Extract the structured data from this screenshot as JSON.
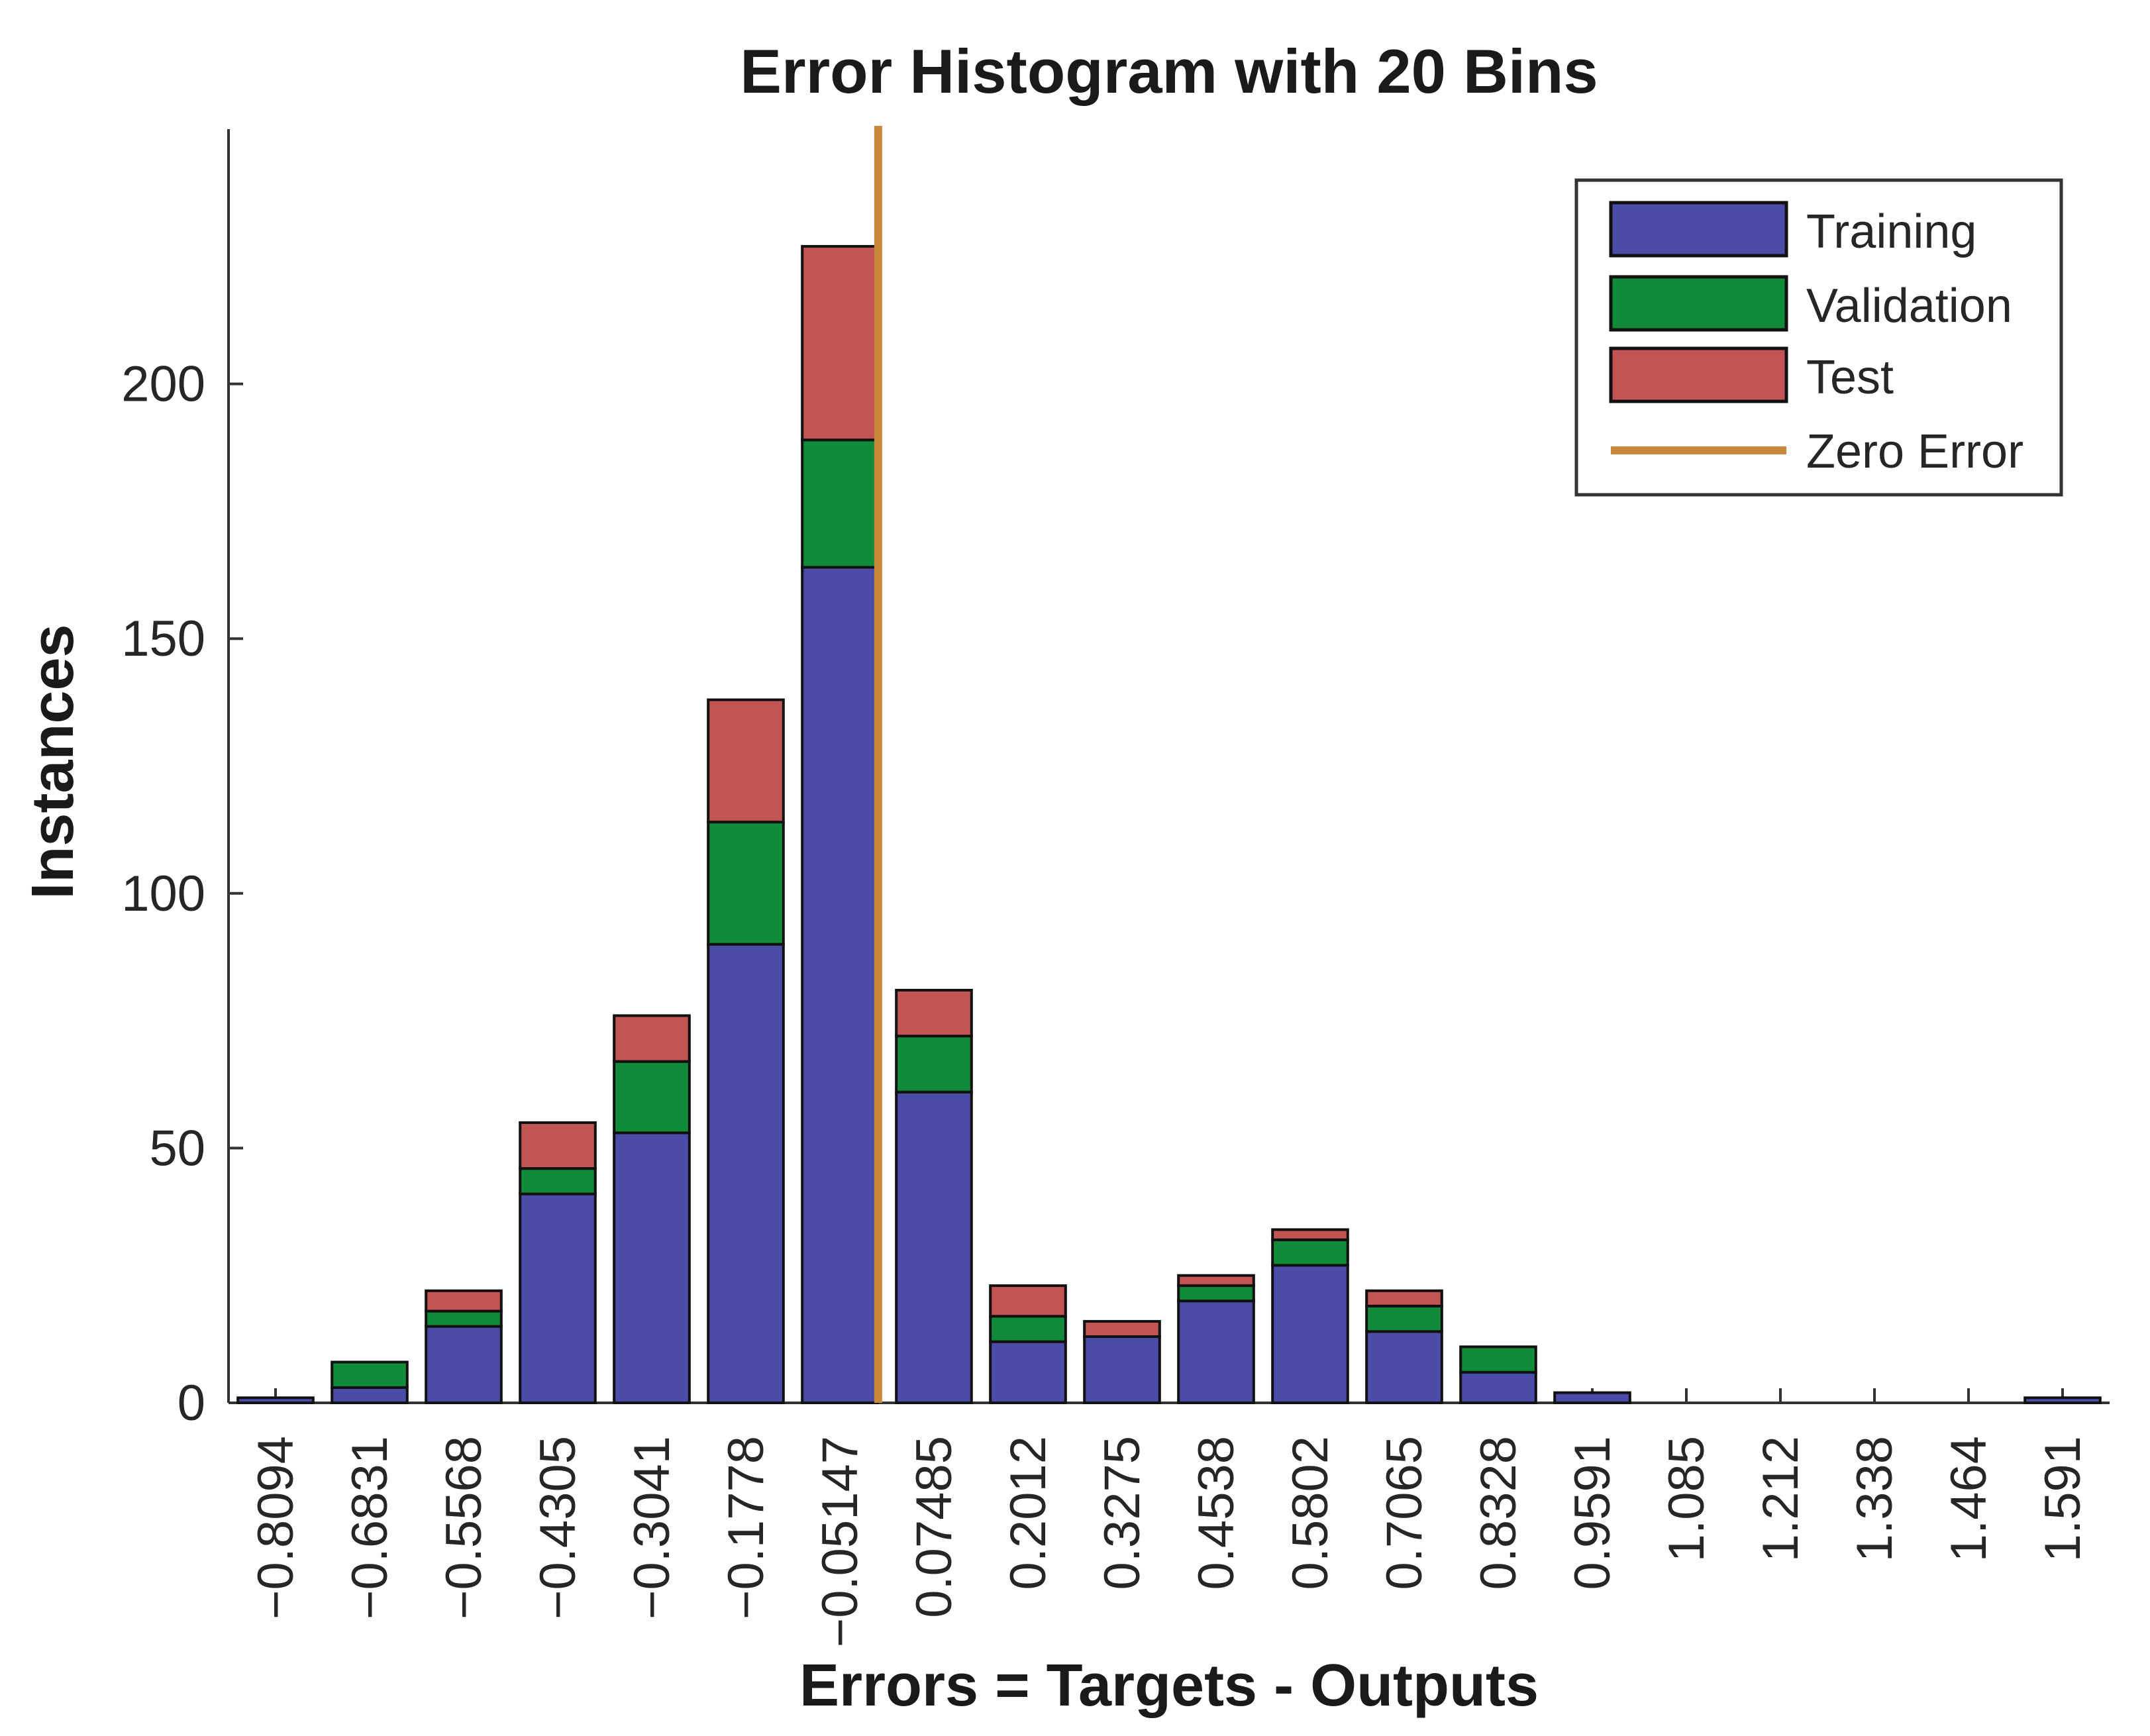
{
  "chart_data": {
    "type": "bar",
    "stacked": true,
    "title": "Error Histogram with 20 Bins",
    "xlabel": "Errors = Targets - Outputs",
    "ylabel": "Instances",
    "categories": [
      "−0.8094",
      "−0.6831",
      "−0.5568",
      "−0.4305",
      "−0.3041",
      "−0.1778",
      "−0.05147",
      "0.07485",
      "0.2012",
      "0.3275",
      "0.4538",
      "0.5802",
      "0.7065",
      "0.8328",
      "0.9591",
      "1.085",
      "1.212",
      "1.338",
      "1.464",
      "1.591"
    ],
    "series": [
      {
        "name": "Training",
        "color": "#4B4BA8",
        "values": [
          1,
          3,
          15,
          41,
          53,
          90,
          164,
          61,
          12,
          13,
          20,
          27,
          14,
          6,
          2,
          0,
          0,
          0,
          0,
          1
        ]
      },
      {
        "name": "Validation",
        "color": "#118A3A",
        "values": [
          0,
          5,
          3,
          5,
          14,
          24,
          25,
          11,
          5,
          0,
          3,
          5,
          5,
          5,
          0,
          0,
          0,
          0,
          0,
          0
        ]
      },
      {
        "name": "Test",
        "color": "#C25454",
        "values": [
          0,
          0,
          4,
          9,
          9,
          24,
          38,
          9,
          6,
          3,
          2,
          2,
          3,
          0,
          0,
          0,
          0,
          0,
          0,
          0
        ]
      }
    ],
    "zero_error": {
      "name": "Zero Error",
      "x": 0,
      "color": "#C8893D"
    },
    "yticks": [
      0,
      50,
      100,
      150,
      200
    ],
    "ylim": [
      0,
      250
    ],
    "grid": false,
    "legend_position": "top-right"
  }
}
